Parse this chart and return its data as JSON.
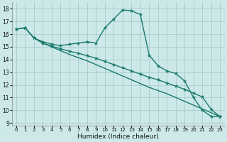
{
  "xlabel": "Humidex (Indice chaleur)",
  "bg_color": "#cce8e8",
  "grid_color": "#aacccc",
  "line_color": "#1a7a6e",
  "xlim": [
    -0.5,
    23.5
  ],
  "ylim": [
    8.8,
    18.5
  ],
  "yticks": [
    9,
    10,
    11,
    12,
    13,
    14,
    15,
    16,
    17,
    18
  ],
  "xticks": [
    0,
    1,
    2,
    3,
    4,
    5,
    6,
    7,
    8,
    9,
    10,
    11,
    12,
    13,
    14,
    15,
    16,
    17,
    18,
    19,
    20,
    21,
    22,
    23
  ],
  "line1_x": [
    0,
    1,
    2,
    3,
    4,
    5,
    6,
    7,
    8,
    9,
    10,
    11,
    12,
    13,
    14,
    15,
    16,
    17,
    18,
    19,
    20,
    21,
    22,
    23
  ],
  "line1_y": [
    16.4,
    16.5,
    15.7,
    15.4,
    15.2,
    15.1,
    15.2,
    15.3,
    15.4,
    15.3,
    16.5,
    17.2,
    17.9,
    17.85,
    17.55,
    14.35,
    13.5,
    13.1,
    12.9,
    12.3,
    11.0,
    10.0,
    9.5,
    9.5
  ],
  "line2_x": [
    0,
    1,
    2,
    3,
    4,
    5,
    6,
    7,
    8,
    9,
    10,
    11,
    12,
    13,
    14,
    15,
    16,
    17,
    18,
    19,
    20,
    21,
    22,
    23
  ],
  "line2_y": [
    16.4,
    16.5,
    15.7,
    15.3,
    15.05,
    14.85,
    14.65,
    14.5,
    14.3,
    14.1,
    13.85,
    13.6,
    13.35,
    13.1,
    12.85,
    12.6,
    12.4,
    12.15,
    11.9,
    11.65,
    11.35,
    11.05,
    10.05,
    9.5
  ],
  "line3_x": [
    0,
    1,
    2,
    3,
    4,
    5,
    6,
    7,
    8,
    9,
    10,
    11,
    12,
    13,
    14,
    15,
    16,
    17,
    18,
    19,
    20,
    21,
    22,
    23
  ],
  "line3_y": [
    16.4,
    16.5,
    15.7,
    15.3,
    15.0,
    14.7,
    14.4,
    14.15,
    13.9,
    13.6,
    13.3,
    13.0,
    12.7,
    12.4,
    12.1,
    11.8,
    11.55,
    11.3,
    11.0,
    10.7,
    10.4,
    10.1,
    9.8,
    9.5
  ]
}
